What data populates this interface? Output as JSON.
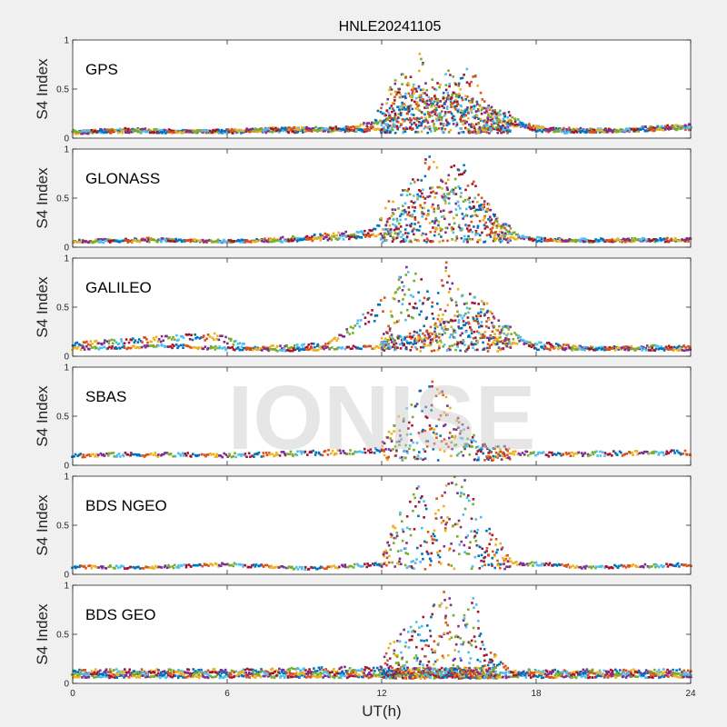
{
  "figure": {
    "title": "HNLE20241105",
    "watermark": "IONISE",
    "xlabel": "UT(h)"
  },
  "colors": [
    "#0072BD",
    "#D95319",
    "#EDB120",
    "#7E2F8E",
    "#77AC30",
    "#4DBEEE",
    "#A2142F"
  ],
  "chart_data": [
    {
      "type": "scatter",
      "panel_label": "GPS",
      "ylabel": "S4 Index",
      "xlim": [
        0,
        24
      ],
      "ylim": [
        0,
        1
      ],
      "xticks": [
        0,
        6,
        12,
        18,
        24
      ],
      "yticks": [
        0,
        0.5,
        1
      ],
      "ytick_labels": [
        "0",
        "0.5",
        "1"
      ],
      "grid": false,
      "activity_window_hours": [
        12.0,
        17.0
      ],
      "series": [
        {
          "x": [
            0,
            2,
            4,
            6,
            8,
            10,
            11.5,
            12.5,
            13,
            13.5,
            14,
            15,
            16,
            17,
            19,
            21,
            23,
            24
          ],
          "y": [
            0.06,
            0.09,
            0.07,
            0.06,
            0.1,
            0.08,
            0.08,
            0.5,
            0.62,
            0.45,
            0.3,
            0.4,
            0.25,
            0.12,
            0.09,
            0.08,
            0.11,
            0.1
          ]
        },
        {
          "x": [
            0,
            3,
            6,
            9,
            12,
            14,
            14.5,
            15,
            15.5,
            16,
            18,
            21,
            24
          ],
          "y": [
            0.05,
            0.08,
            0.06,
            0.07,
            0.1,
            0.45,
            0.6,
            0.55,
            0.65,
            0.3,
            0.08,
            0.07,
            0.12
          ]
        },
        {
          "x": [
            0,
            4,
            8,
            11,
            12.2,
            13.5,
            14,
            15,
            15.3,
            16.5,
            19,
            24
          ],
          "y": [
            0.07,
            0.06,
            0.09,
            0.1,
            0.2,
            0.75,
            0.5,
            0.45,
            0.35,
            0.2,
            0.06,
            0.1
          ]
        }
      ]
    },
    {
      "type": "scatter",
      "panel_label": "GLONASS",
      "ylabel": "S4 Index",
      "xlim": [
        0,
        24
      ],
      "ylim": [
        0,
        1
      ],
      "xticks": [
        0,
        6,
        12,
        18,
        24
      ],
      "yticks": [
        0,
        0.5,
        1
      ],
      "ytick_labels": [
        "0",
        "0.5",
        "1"
      ],
      "grid": false,
      "activity_window_hours": [
        12.0,
        17.0
      ],
      "series": [
        {
          "x": [
            0,
            3,
            6,
            9,
            11.5,
            12.5,
            13,
            13.8,
            14.5,
            15,
            16,
            17,
            20,
            24
          ],
          "y": [
            0.06,
            0.08,
            0.05,
            0.1,
            0.15,
            0.45,
            0.5,
            0.85,
            0.6,
            0.5,
            0.35,
            0.1,
            0.06,
            0.07
          ]
        },
        {
          "x": [
            0,
            4,
            8,
            12,
            14,
            15,
            15.5,
            16,
            16.5,
            18,
            24
          ],
          "y": [
            0.05,
            0.07,
            0.06,
            0.12,
            0.55,
            0.8,
            0.6,
            0.45,
            0.2,
            0.07,
            0.08
          ]
        }
      ]
    },
    {
      "type": "scatter",
      "panel_label": "GALILEO",
      "ylabel": "S4 Index",
      "xlim": [
        0,
        24
      ],
      "ylim": [
        0,
        1
      ],
      "xticks": [
        0,
        6,
        12,
        18,
        24
      ],
      "yticks": [
        0,
        0.5,
        1
      ],
      "ytick_labels": [
        "0",
        "0.5",
        "1"
      ],
      "grid": false,
      "activity_window_hours": [
        12.0,
        17.0
      ],
      "series": [
        {
          "x": [
            0,
            2,
            4,
            5.5,
            7,
            10,
            12.5,
            13,
            13.5,
            14,
            14.5,
            15,
            16,
            17,
            20,
            24
          ],
          "y": [
            0.12,
            0.15,
            0.18,
            0.2,
            0.08,
            0.12,
            0.6,
            0.95,
            0.7,
            0.5,
            0.85,
            0.6,
            0.45,
            0.15,
            0.08,
            0.1
          ]
        },
        {
          "x": [
            0,
            4,
            8,
            12,
            15.5,
            16,
            16.5,
            18,
            24
          ],
          "y": [
            0.08,
            0.1,
            0.06,
            0.1,
            0.35,
            0.5,
            0.3,
            0.08,
            0.07
          ]
        }
      ]
    },
    {
      "type": "scatter",
      "panel_label": "SBAS",
      "ylabel": "S4 Index",
      "xlim": [
        0,
        24
      ],
      "ylim": [
        0,
        1
      ],
      "xticks": [
        0,
        6,
        12,
        18,
        24
      ],
      "yticks": [
        0,
        0.5,
        1
      ],
      "ytick_labels": [
        "0",
        "0.5",
        "1"
      ],
      "grid": false,
      "activity_window_hours": [
        12.0,
        17.0
      ],
      "series": [
        {
          "x": [
            0,
            3,
            6,
            9,
            12,
            13,
            14,
            14.5,
            15,
            16,
            18,
            21,
            24
          ],
          "y": [
            0.1,
            0.11,
            0.1,
            0.12,
            0.15,
            0.55,
            0.75,
            0.6,
            0.4,
            0.15,
            0.11,
            0.12,
            0.13
          ]
        }
      ]
    },
    {
      "type": "scatter",
      "panel_label": "BDS NGEO",
      "ylabel": "S4 Index",
      "xlim": [
        0,
        24
      ],
      "ylim": [
        0,
        1
      ],
      "xticks": [
        0,
        6,
        12,
        18,
        24
      ],
      "yticks": [
        0,
        0.5,
        1
      ],
      "ytick_labels": [
        "0",
        "0.5",
        "1"
      ],
      "grid": false,
      "activity_window_hours": [
        12.0,
        17.0
      ],
      "series": [
        {
          "x": [
            0,
            3,
            6,
            9,
            12,
            12.5,
            13.5,
            14,
            15,
            15.5,
            16,
            17,
            20,
            24
          ],
          "y": [
            0.08,
            0.07,
            0.1,
            0.06,
            0.1,
            0.45,
            0.85,
            0.6,
            0.95,
            0.7,
            0.45,
            0.12,
            0.07,
            0.1
          ]
        }
      ]
    },
    {
      "type": "scatter",
      "panel_label": "BDS GEO",
      "ylabel": "S4 Index",
      "xlim": [
        0,
        24
      ],
      "ylim": [
        0,
        1
      ],
      "xticks": [
        0,
        6,
        12,
        18,
        24
      ],
      "yticks": [
        0,
        0.5,
        1
      ],
      "ytick_labels": [
        "0",
        "0.5",
        "1"
      ],
      "grid": false,
      "activity_window_hours": [
        12.0,
        16.5
      ],
      "series": [
        {
          "x": [
            0,
            6,
            12,
            12.5,
            13.5,
            14,
            14.5,
            15,
            15.5,
            16,
            17,
            24
          ],
          "y": [
            0.12,
            0.12,
            0.15,
            0.4,
            0.55,
            0.7,
            0.85,
            0.5,
            0.9,
            0.3,
            0.12,
            0.12
          ]
        },
        {
          "x": [
            0,
            12,
            24
          ],
          "y": [
            0.07,
            0.07,
            0.07
          ]
        },
        {
          "x": [
            0,
            12,
            24
          ],
          "y": [
            0.1,
            0.1,
            0.1
          ]
        }
      ]
    }
  ]
}
